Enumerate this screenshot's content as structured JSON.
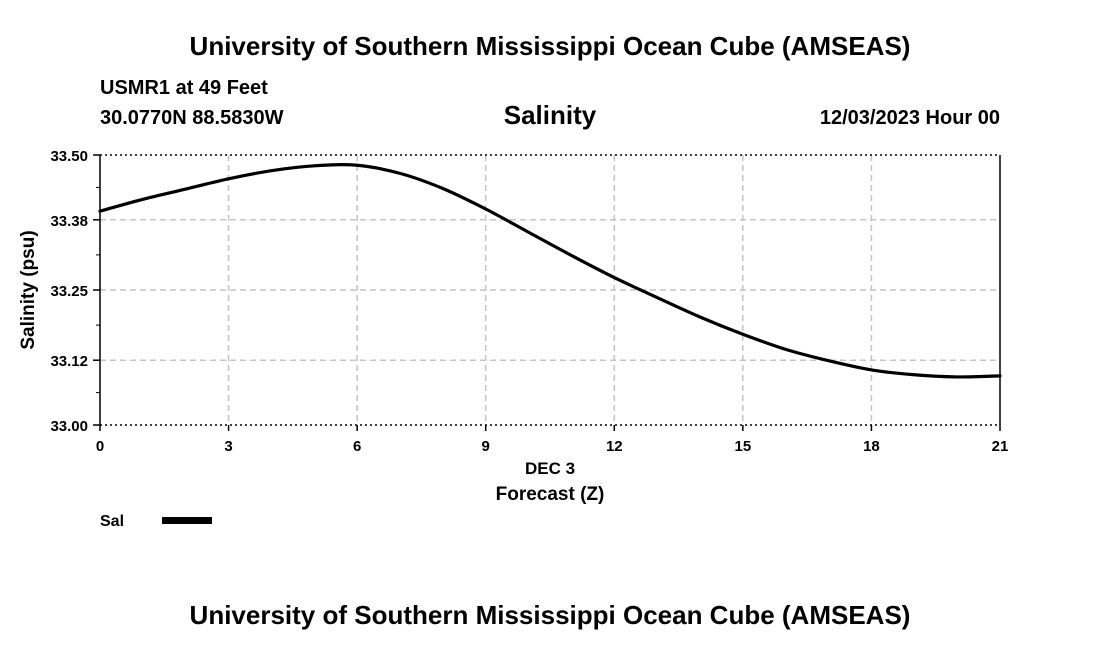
{
  "header": {
    "title": "University of Southern Mississippi Ocean Cube (AMSEAS)",
    "station": "USMR1 at 49 Feet",
    "coords": "30.0770N  88.5830W",
    "datetime": "12/03/2023 Hour 00"
  },
  "footer": {
    "title": "University of Southern Mississippi Ocean Cube (AMSEAS)"
  },
  "chart_data": {
    "type": "line",
    "title": "Salinity",
    "xlabel": "Forecast (Z)",
    "xlabel_date": "DEC 3",
    "ylabel": "Salinity (psu)",
    "xlim": [
      0,
      21
    ],
    "ylim": [
      33.0,
      33.5
    ],
    "x_ticks": [
      0,
      3,
      6,
      9,
      12,
      15,
      18,
      21
    ],
    "y_ticks": [
      33.0,
      33.12,
      33.25,
      33.38,
      33.5
    ],
    "y_tick_labels": [
      "33.00",
      "33.12",
      "33.25",
      "33.38",
      "33.50"
    ],
    "grid": true,
    "series": [
      {
        "name": "Sal",
        "color": "#000000",
        "x": [
          0,
          1,
          2,
          3,
          4,
          5,
          6,
          7,
          8,
          9,
          10,
          11,
          12,
          13,
          14,
          15,
          16,
          17,
          18,
          19,
          20,
          21
        ],
        "values": [
          33.396,
          33.418,
          33.437,
          33.456,
          33.471,
          33.48,
          33.481,
          33.466,
          33.438,
          33.4,
          33.357,
          33.314,
          33.273,
          33.236,
          33.2,
          33.168,
          33.14,
          33.119,
          33.102,
          33.093,
          33.089,
          33.091
        ]
      }
    ],
    "legend": {
      "position": "bottom-left"
    }
  }
}
